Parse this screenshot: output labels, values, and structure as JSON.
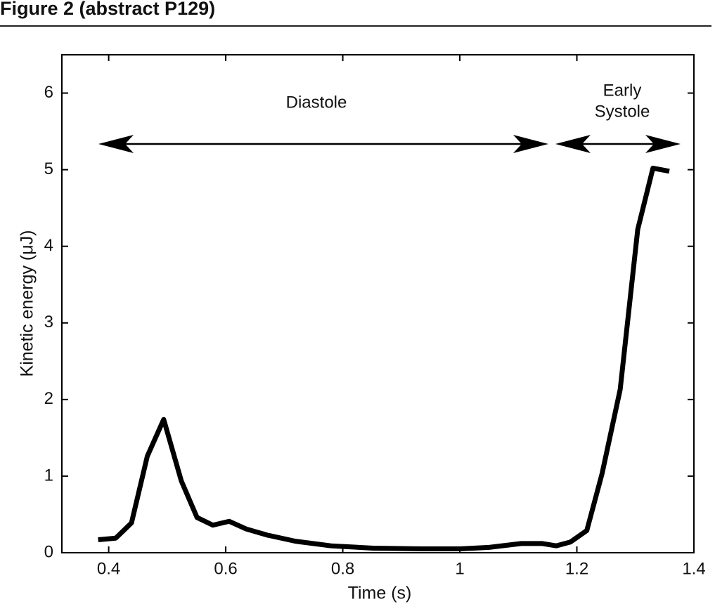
{
  "header": {
    "title": "Figure 2 (abstract P129)"
  },
  "chart_data": {
    "type": "line",
    "x_label": "Time (s)",
    "y_label": "Kinetic energy (μJ)",
    "annotations": {
      "diastole": "Diastole",
      "early_systole": [
        "Early",
        "Systole"
      ]
    },
    "x": [
      0.382,
      0.412,
      0.439,
      0.466,
      0.494,
      0.524,
      0.551,
      0.578,
      0.606,
      0.635,
      0.671,
      0.719,
      0.78,
      0.852,
      0.936,
      1.0,
      1.05,
      1.105,
      1.141,
      1.165,
      1.189,
      1.217,
      1.243,
      1.274,
      1.304,
      1.33,
      1.358
    ],
    "series": [
      {
        "color": "#000000",
        "values": [
          0.17,
          0.19,
          0.39,
          1.26,
          1.74,
          0.94,
          0.46,
          0.36,
          0.41,
          0.31,
          0.23,
          0.15,
          0.09,
          0.06,
          0.05,
          0.05,
          0.07,
          0.12,
          0.12,
          0.09,
          0.14,
          0.29,
          1.03,
          2.13,
          4.22,
          5.02,
          4.98
        ]
      }
    ],
    "xlim": [
      0.32,
      1.4
    ],
    "xticks": [
      0.4,
      0.6,
      0.8,
      1,
      1.2,
      1.4
    ],
    "ylim": [
      0,
      6.5
    ],
    "yticks": [
      0,
      1,
      2,
      3,
      4,
      5,
      6
    ],
    "grid": false
  }
}
